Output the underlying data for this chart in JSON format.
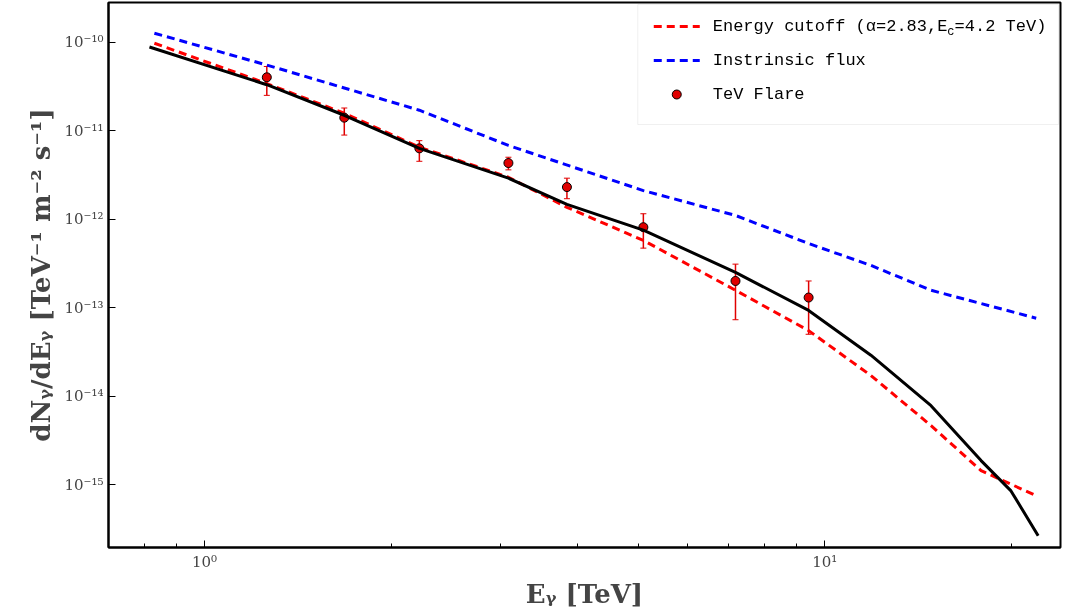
{
  "chart_data": {
    "type": "line",
    "xlabel": "Eᵧ [TeV]",
    "ylabel": "dNᵧ/dEᵧ [TeV⁻¹ m⁻² s⁻¹]",
    "log": "xy",
    "grid": false,
    "legend": "top right",
    "xlim": [
      0.7,
      24
    ],
    "ylim": [
      1.95e-16,
      2.8e-10
    ],
    "xticks": [
      {
        "value": 1,
        "label": "10⁰"
      },
      {
        "value": 10,
        "label": "10¹"
      }
    ],
    "yticks": [
      {
        "value": 1e-15,
        "label": "10⁻¹⁵"
      },
      {
        "value": 1e-14,
        "label": "10⁻¹⁴"
      },
      {
        "value": 1e-13,
        "label": "10⁻¹³"
      },
      {
        "value": 1e-12,
        "label": "10⁻¹²"
      },
      {
        "value": 1e-11,
        "label": "10⁻¹¹"
      },
      {
        "value": 1e-10,
        "label": "10⁻¹⁰"
      }
    ],
    "series": [
      {
        "name": "Energy cutoff (α=2.83,E$_{c}$=4.2 TeV)",
        "line_style": "dashed",
        "color": "#ff0000",
        "x": [
          0.83,
          1.26,
          1.68,
          2.22,
          3.09,
          3.84,
          5.1,
          7.18,
          9.42,
          11.87,
          14.84,
          17.87,
          21.93
        ],
        "values": [
          9.7e-11,
          3.4e-11,
          1.57e-11,
          6.5e-12,
          2.97e-12,
          1.36e-12,
          5.75e-13,
          1.57e-13,
          5.5e-14,
          1.71e-14,
          4.65e-15,
          1.44e-15,
          7.5e-16
        ]
      },
      {
        "name": "Instrinsic flux",
        "line_style": "dashed",
        "color": "#0000ff",
        "x": [
          0.83,
          1.26,
          2.22,
          3.09,
          5.1,
          7.18,
          9.42,
          11.87,
          14.84,
          21.93
        ],
        "values": [
          1.26e-10,
          5.5e-11,
          1.7e-11,
          6.8e-12,
          2.1e-12,
          1.1e-12,
          5.3e-13,
          3e-13,
          1.57e-13,
          7.6e-14
        ]
      },
      {
        "name": "TeV Flare",
        "type": "scatter",
        "marker": "circle",
        "color": "#e00000",
        "x": [
          1.26,
          1.68,
          2.22,
          3.09,
          3.84,
          5.1,
          7.18,
          9.42
        ],
        "values": [
          4e-11,
          1.4e-11,
          6.3e-12,
          4.3e-12,
          2.3e-12,
          8.1e-13,
          2e-13,
          1.3e-13
        ],
        "errors": [
          [
            2.5e-11,
            5.3e-11
          ],
          [
            8.9e-12,
            1.8e-11
          ],
          [
            4.5e-12,
            7.7e-12
          ],
          [
            3.6e-12,
            5e-12
          ],
          [
            1.7e-12,
            2.9e-12
          ],
          [
            4.7e-13,
            1.15e-12
          ],
          [
            7.3e-14,
            3.1e-13
          ],
          [
            5e-14,
            2e-13
          ]
        ]
      },
      {
        "line_style": "solid",
        "color": "#000000",
        "x": [
          0.815,
          1.26,
          1.68,
          2.22,
          3.09,
          3.84,
          5.1,
          7.18,
          9.42,
          11.87,
          14.84,
          17.87,
          19.97,
          22.09
        ],
        "values": [
          8.8e-11,
          3.3e-11,
          1.49e-11,
          6.3e-12,
          2.9e-12,
          1.47e-12,
          7.5e-13,
          2.5e-13,
          9.3e-14,
          2.9e-14,
          7.8e-15,
          1.87e-15,
          8.5e-16,
          2.65e-16
        ]
      }
    ]
  }
}
